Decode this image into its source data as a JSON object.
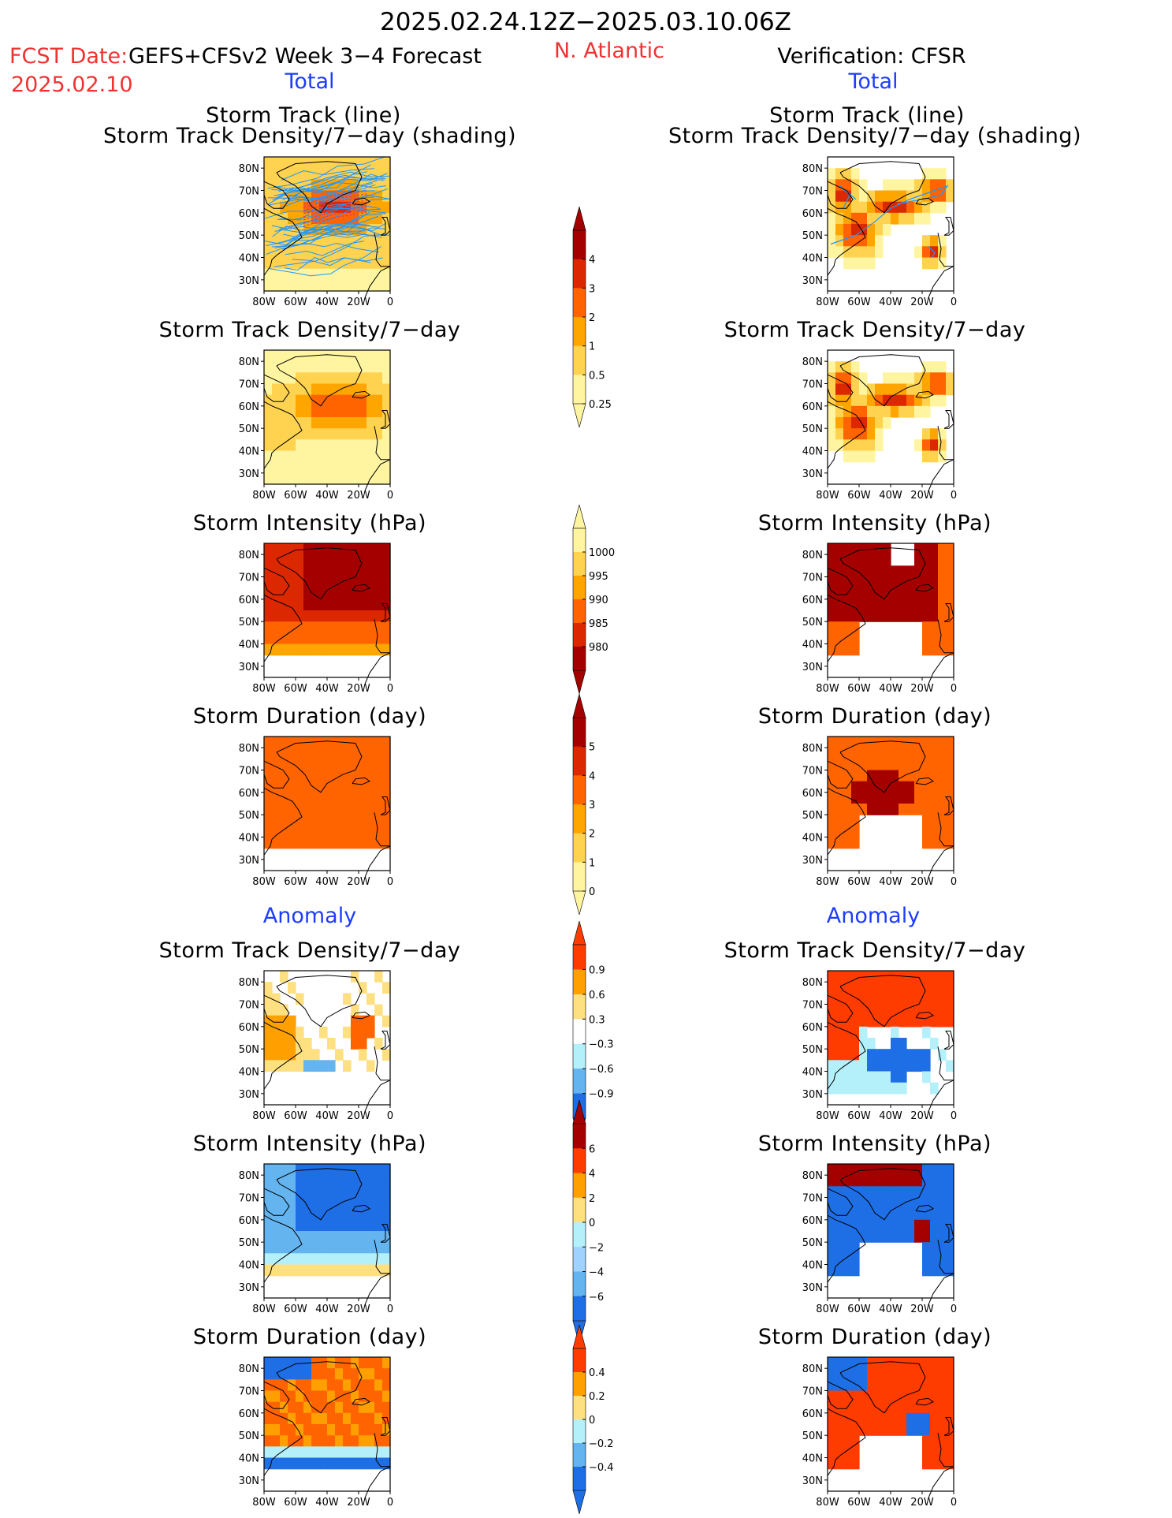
{
  "header": {
    "period": "2025.02.24.12Z−2025.03.10.06Z",
    "fcst_label": "FCST Date:",
    "model": "GEFS+CFSv2 Week 3−4 Forecast",
    "fcst_date": "2025.02.10",
    "region": "N. Atlantic",
    "verification": "Verification: CFSR"
  },
  "sections": {
    "total": "Total",
    "anomaly": "Anomaly"
  },
  "titles": {
    "track_line": "Storm Track (line)",
    "track_density_shading": "Storm Track Density/7−day (shading)",
    "track_density": "Storm Track Density/7−day",
    "intensity": "Storm Intensity (hPa)",
    "duration": "Storm Duration (day)"
  },
  "map_axes": {
    "lat_labels": [
      "80N",
      "70N",
      "60N",
      "50N",
      "40N",
      "30N"
    ],
    "lon_labels": [
      "80W",
      "60W",
      "40W",
      "20W",
      "0"
    ]
  },
  "colorbars": {
    "density_total": {
      "labels": [
        "4",
        "3",
        "2",
        "1",
        "0.5",
        "0.25"
      ],
      "colors": [
        "#a50000",
        "#dc2800",
        "#ff6400",
        "#ffa500",
        "#ffd250",
        "#fff5a0"
      ],
      "arrows": "top"
    },
    "intensity_total": {
      "labels": [
        "1000",
        "995",
        "990",
        "985",
        "980"
      ],
      "colors": [
        "#fff5a0",
        "#ffd250",
        "#ffa500",
        "#ff6400",
        "#dc2800",
        "#a50000"
      ],
      "arrows": "bottom"
    },
    "duration_total": {
      "labels": [
        "5",
        "4",
        "3",
        "2",
        "1",
        "0"
      ],
      "colors": [
        "#a50000",
        "#dc2800",
        "#ff6400",
        "#ffa500",
        "#ffd250",
        "#fff5a0"
      ],
      "arrows": "top"
    },
    "density_anom": {
      "labels": [
        "0.9",
        "0.6",
        "0.3",
        "−0.3",
        "−0.6",
        "−0.9"
      ],
      "colors": [
        "#ff3c00",
        "#ffa000",
        "#ffe080",
        "#ffffff",
        "#b4f0fa",
        "#64b4f0",
        "#1e6ee6"
      ]
    },
    "intensity_anom": {
      "labels": [
        "6",
        "4",
        "2",
        "0",
        "−2",
        "−4",
        "−6"
      ],
      "colors": [
        "#a50000",
        "#ff3c00",
        "#ffa000",
        "#ffe080",
        "#b4f0fa",
        "#a0d2ff",
        "#64b4f0",
        "#1e6ee6"
      ]
    },
    "duration_anom": {
      "labels": [
        "0.4",
        "0.2",
        "0",
        "−0.2",
        "−0.4"
      ],
      "colors": [
        "#ff3c00",
        "#ffa000",
        "#ffe080",
        "#b4f0fa",
        "#64b4f0",
        "#1e6ee6"
      ]
    }
  }
}
